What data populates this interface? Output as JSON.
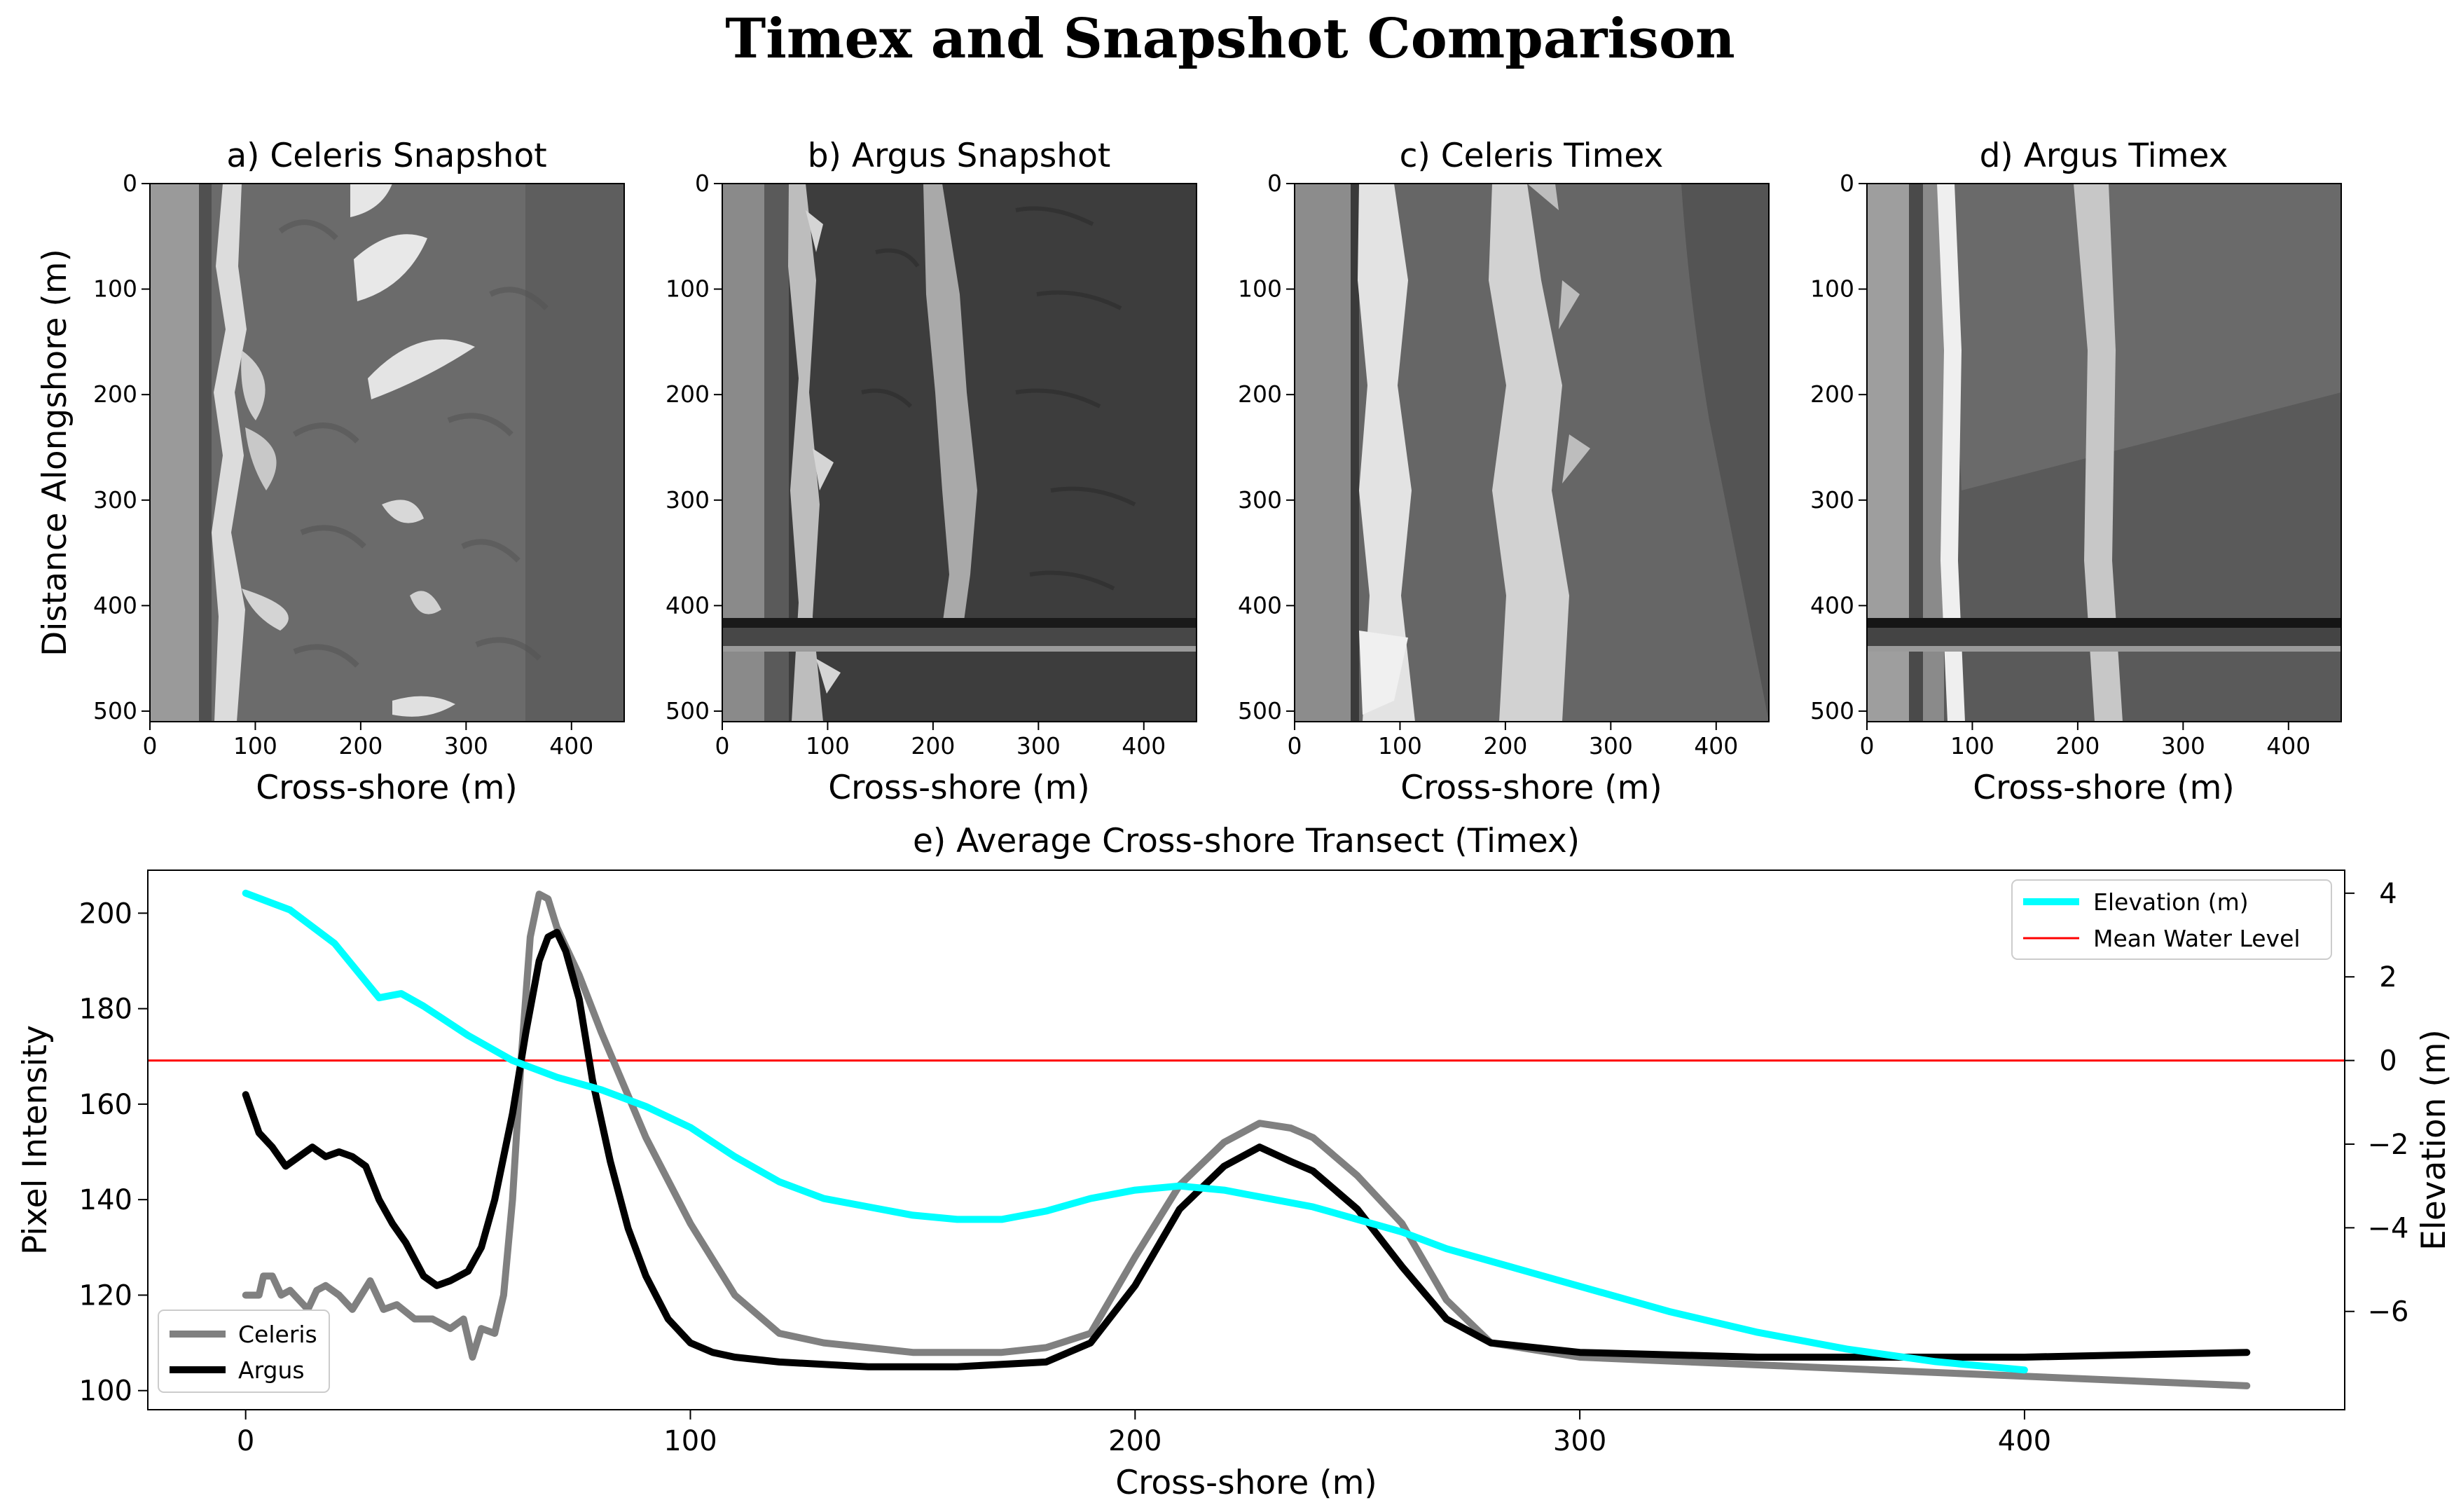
{
  "title": "Timex and Snapshot Comparison",
  "panels": [
    {
      "title": "a) Celeris Snapshot",
      "xlabel": "Cross-shore (m)",
      "ylabel": "Distance Alongshore (m)"
    },
    {
      "title": "b) Argus Snapshot",
      "xlabel": "Cross-shore (m)",
      "ylabel": ""
    },
    {
      "title": "c) Celeris Timex",
      "xlabel": "Cross-shore (m)",
      "ylabel": ""
    },
    {
      "title": "d) Argus Timex",
      "xlabel": "Cross-shore (m)",
      "ylabel": ""
    }
  ],
  "image_axes": {
    "x_ticks": [
      0,
      100,
      200,
      300,
      400
    ],
    "y_ticks": [
      0,
      100,
      200,
      300,
      400,
      500
    ],
    "xlim": [
      0,
      450
    ],
    "ylim": [
      510,
      0
    ]
  },
  "chart_data": {
    "type": "line",
    "title": "e) Average Cross-shore Transect (Timex)",
    "xlabel": "Cross-shore (m)",
    "ylabel": "Pixel Intensity",
    "ylabel_right": "Elevation (m)",
    "xlim": [
      -22,
      472
    ],
    "ylim": [
      96,
      209
    ],
    "ylim_right": [
      -8.35,
      4.55
    ],
    "x_ticks": [
      0,
      100,
      200,
      300,
      400
    ],
    "y_ticks": [
      100,
      120,
      140,
      160,
      180,
      200
    ],
    "y_ticks_right": [
      -6,
      -4,
      -2,
      0,
      2,
      4
    ],
    "legend_left_position": "lower-left",
    "legend_right_position": "upper-right",
    "series": [
      {
        "name": "Celeris",
        "axis": "left",
        "color": "#808080",
        "x": [
          0,
          3,
          4,
          6,
          8,
          10,
          14,
          16,
          18,
          21,
          24,
          28,
          31,
          34,
          38,
          42,
          46,
          49,
          51,
          53,
          56,
          58,
          60,
          62,
          64,
          66,
          68,
          70,
          75,
          80,
          90,
          100,
          110,
          120,
          130,
          150,
          170,
          180,
          190,
          200,
          210,
          220,
          228,
          235,
          240,
          250,
          260,
          270,
          280,
          300,
          350,
          400,
          450
        ],
        "y": [
          120,
          120,
          124,
          124,
          120,
          121,
          117,
          121,
          122,
          120,
          117,
          123,
          117,
          118,
          115,
          115,
          113,
          115,
          107,
          113,
          112,
          120,
          140,
          170,
          195,
          204,
          203,
          197,
          187,
          175,
          153,
          135,
          120,
          112,
          110,
          108,
          108,
          109,
          112,
          128,
          143,
          152,
          156,
          155,
          153,
          145,
          135,
          119,
          110,
          107,
          105,
          103,
          101
        ]
      },
      {
        "name": "Argus",
        "axis": "left",
        "color": "#000000",
        "x": [
          0,
          3,
          6,
          9,
          12,
          15,
          18,
          21,
          24,
          27,
          30,
          33,
          36,
          40,
          43,
          46,
          50,
          53,
          56,
          60,
          63,
          66,
          68,
          70,
          72,
          75,
          78,
          82,
          86,
          90,
          95,
          100,
          105,
          110,
          120,
          140,
          160,
          180,
          190,
          200,
          210,
          220,
          228,
          235,
          240,
          250,
          260,
          270,
          280,
          300,
          340,
          400,
          450
        ],
        "y": [
          162,
          154,
          151,
          147,
          149,
          151,
          149,
          150,
          149,
          147,
          140,
          135,
          131,
          124,
          122,
          123,
          125,
          130,
          140,
          158,
          175,
          190,
          195,
          196,
          192,
          182,
          165,
          148,
          134,
          124,
          115,
          110,
          108,
          107,
          106,
          105,
          105,
          106,
          110,
          122,
          138,
          147,
          151,
          148,
          146,
          138,
          126,
          115,
          110,
          108,
          107,
          107,
          108
        ]
      },
      {
        "name": "Elevation (m)",
        "axis": "right",
        "color": "#00ffff",
        "x": [
          0,
          10,
          20,
          30,
          35,
          40,
          50,
          60,
          70,
          80,
          90,
          100,
          110,
          120,
          130,
          140,
          150,
          160,
          170,
          180,
          190,
          200,
          210,
          220,
          230,
          240,
          250,
          260,
          270,
          280,
          300,
          320,
          340,
          360,
          380,
          400
        ],
        "y": [
          4.0,
          3.6,
          2.8,
          1.5,
          1.6,
          1.3,
          0.6,
          0.0,
          -0.4,
          -0.7,
          -1.1,
          -1.6,
          -2.3,
          -2.9,
          -3.3,
          -3.5,
          -3.7,
          -3.8,
          -3.8,
          -3.6,
          -3.3,
          -3.1,
          -3.0,
          -3.1,
          -3.3,
          -3.5,
          -3.8,
          -4.1,
          -4.5,
          -4.8,
          -5.4,
          -6.0,
          -6.5,
          -6.9,
          -7.2,
          -7.4
        ]
      },
      {
        "name": "Mean Water Level",
        "axis": "right",
        "color": "#ff0000",
        "x": [
          -22,
          472
        ],
        "y": [
          0,
          0
        ]
      }
    ]
  }
}
